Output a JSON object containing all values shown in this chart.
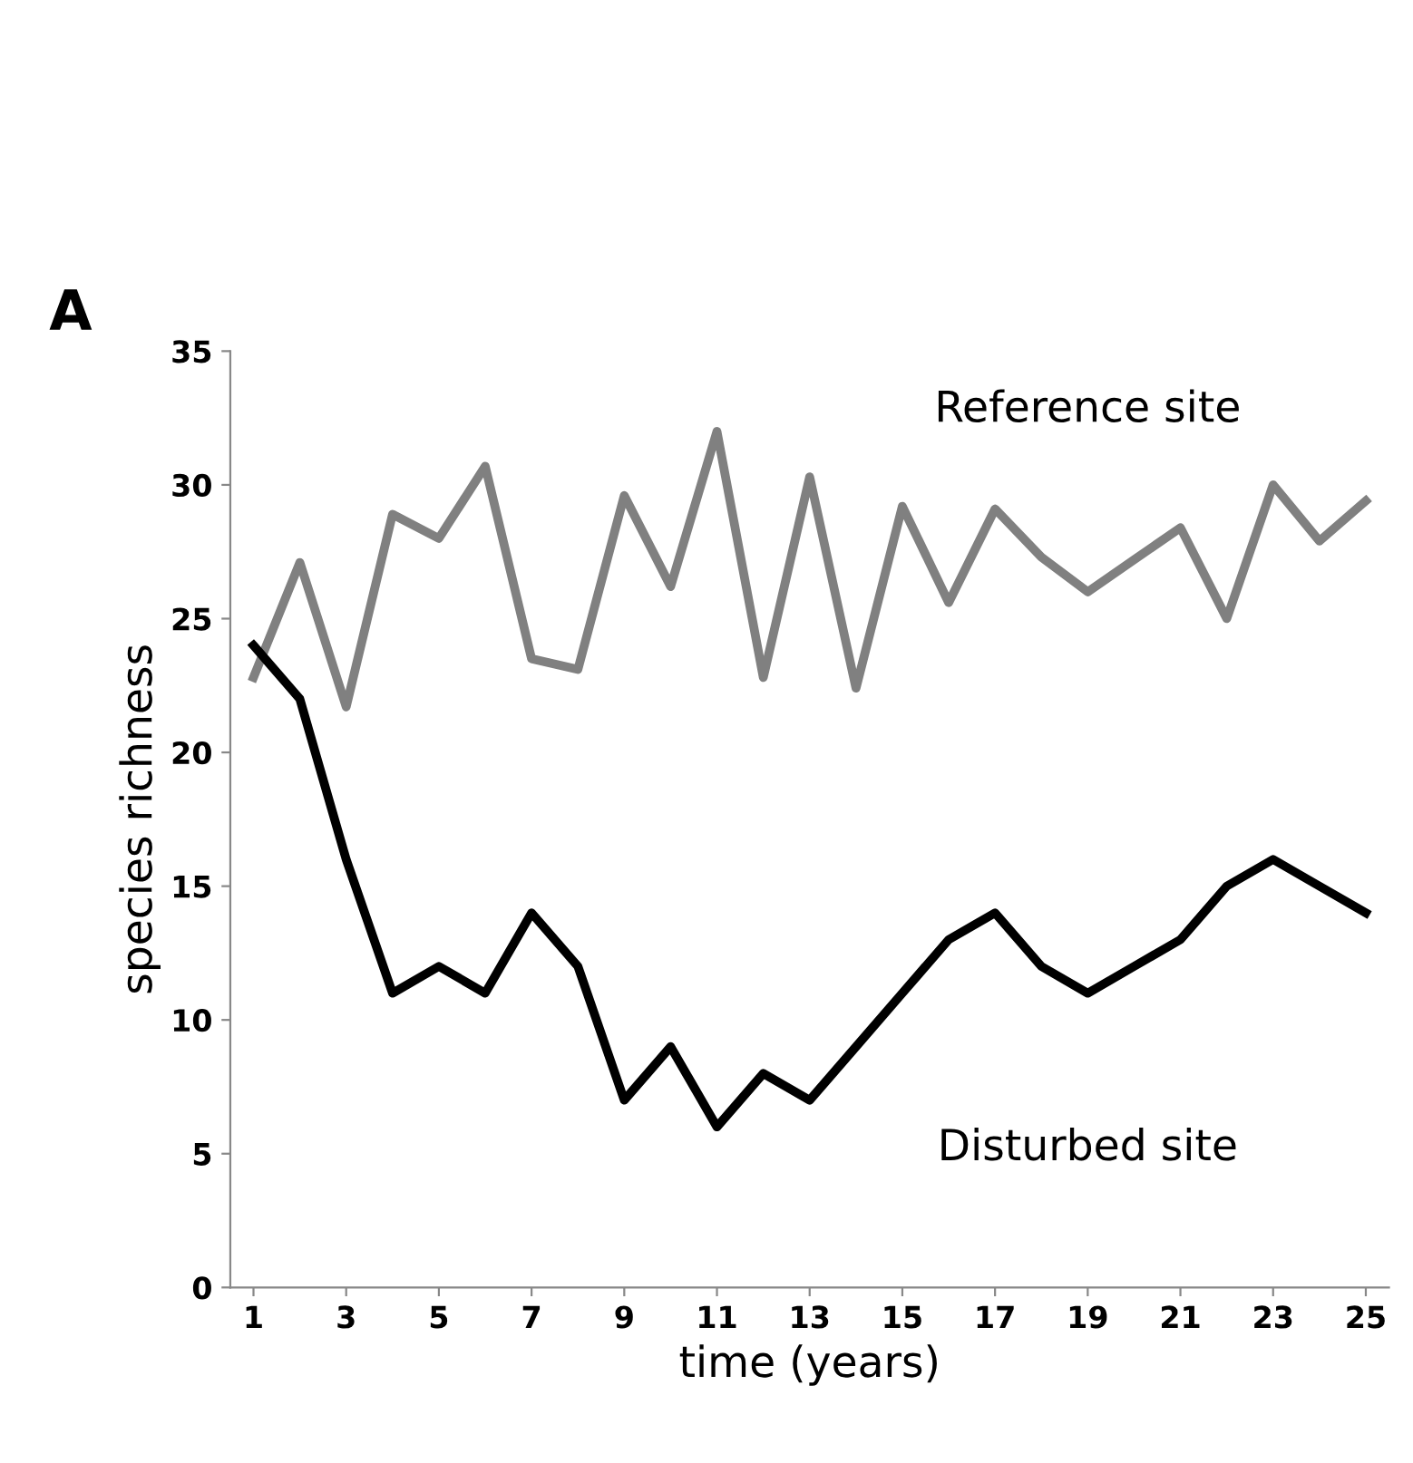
{
  "chart_data": {
    "type": "line",
    "title": "A",
    "xlabel": "time (years)",
    "ylabel": "species richness",
    "x": [
      1,
      2,
      3,
      4,
      5,
      6,
      7,
      8,
      9,
      10,
      11,
      12,
      13,
      14,
      15,
      16,
      17,
      18,
      19,
      20,
      21,
      22,
      23,
      24,
      25
    ],
    "series": [
      {
        "name": "Reference site",
        "color": "#808080",
        "values": [
          22.8,
          27.1,
          21.7,
          28.9,
          28.0,
          30.7,
          23.5,
          23.1,
          29.6,
          26.2,
          32.0,
          22.8,
          30.3,
          22.4,
          29.2,
          25.6,
          29.1,
          27.3,
          26.0,
          27.2,
          28.4,
          25.0,
          30.0,
          27.9,
          29.4
        ]
      },
      {
        "name": "Disturbed site",
        "color": "#000000",
        "values": [
          24,
          22,
          16,
          11,
          12,
          11,
          14,
          12,
          7,
          9,
          6,
          8,
          7,
          9,
          11,
          13,
          14,
          12,
          11,
          12,
          13,
          15,
          16,
          15,
          14
        ]
      }
    ],
    "xlim": [
      0.5,
      25.5
    ],
    "xticks": [
      1,
      3,
      5,
      7,
      9,
      11,
      13,
      15,
      17,
      19,
      21,
      23,
      25
    ],
    "ylim": [
      0,
      35
    ],
    "yticks": [
      0,
      5,
      10,
      15,
      20,
      25,
      30,
      35
    ],
    "grid": false,
    "legend": false,
    "marker": "none",
    "line_style": "solid"
  }
}
